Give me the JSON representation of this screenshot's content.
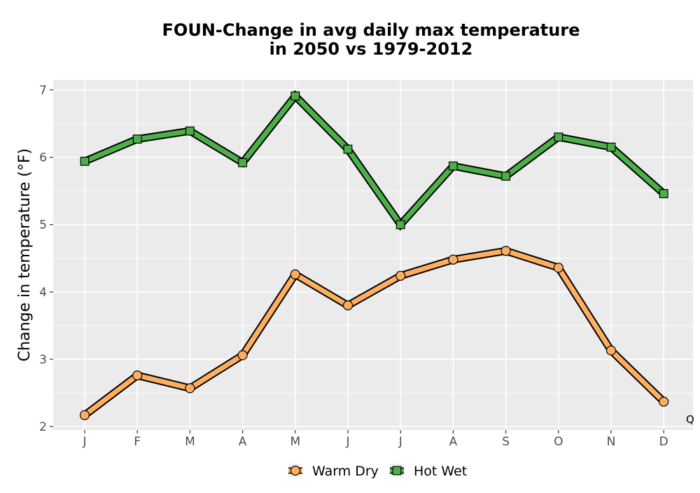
{
  "chart_data": {
    "type": "line",
    "title_lines": [
      "FOUN-Change in avg daily max temperature",
      "in 2050 vs 1979-2012"
    ],
    "xlabel": "",
    "ylabel": "Change in temperature (°F)",
    "categories": [
      "J",
      "F",
      "M",
      "A",
      "M",
      "J",
      "J",
      "A",
      "S",
      "O",
      "N",
      "D"
    ],
    "ylim": [
      1.95,
      7.15
    ],
    "yticks": [
      "2",
      "3",
      "4",
      "5",
      "6",
      "7"
    ],
    "grid": true,
    "legend_position": "bottom",
    "corner_mark": "Q",
    "series": [
      {
        "name": "Warm Dry",
        "marker": "circle",
        "color": "#fdae61",
        "values": [
          2.17,
          2.76,
          2.57,
          3.06,
          4.26,
          3.8,
          4.24,
          4.48,
          4.61,
          4.36,
          3.13,
          2.37
        ]
      },
      {
        "name": "Hot Wet",
        "marker": "square",
        "color": "#4daf4a",
        "values": [
          5.94,
          6.27,
          6.39,
          5.92,
          6.91,
          6.12,
          5.0,
          5.87,
          5.72,
          6.3,
          6.15,
          5.46
        ]
      }
    ],
    "colors": {
      "panel": "#ebebeb",
      "grid": "#ffffff",
      "outline": "#000000"
    }
  }
}
